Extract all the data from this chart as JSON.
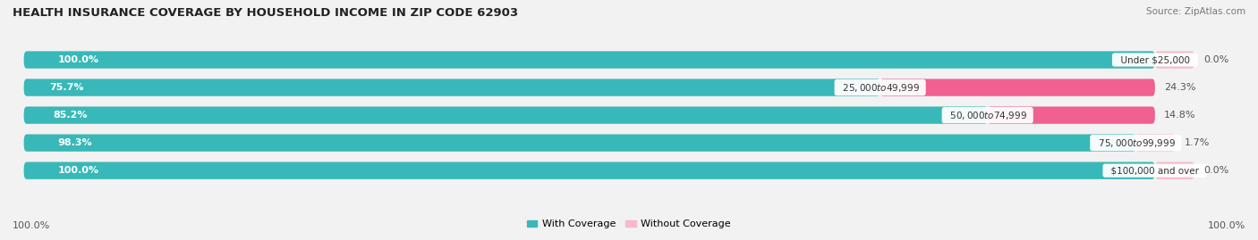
{
  "title": "HEALTH INSURANCE COVERAGE BY HOUSEHOLD INCOME IN ZIP CODE 62903",
  "source": "Source: ZipAtlas.com",
  "categories": [
    "Under $25,000",
    "$25,000 to $49,999",
    "$50,000 to $74,999",
    "$75,000 to $99,999",
    "$100,000 and over"
  ],
  "with_coverage": [
    100.0,
    75.7,
    85.2,
    98.3,
    100.0
  ],
  "without_coverage": [
    0.0,
    24.3,
    14.8,
    1.7,
    0.0
  ],
  "color_with": "#38b8b8",
  "color_without": "#f06090",
  "color_without_light": "#f9b8cc",
  "bg_color": "#f2f2f2",
  "bar_bg_color": "#e0e0e0",
  "title_fontsize": 9.5,
  "label_fontsize": 8,
  "source_fontsize": 7.5,
  "bar_height": 0.62,
  "figsize": [
    14.06,
    2.69
  ],
  "dpi": 100,
  "legend_labels": [
    "With Coverage",
    "Without Coverage"
  ],
  "bottom_left_label": "100.0%",
  "bottom_right_label": "100.0%"
}
